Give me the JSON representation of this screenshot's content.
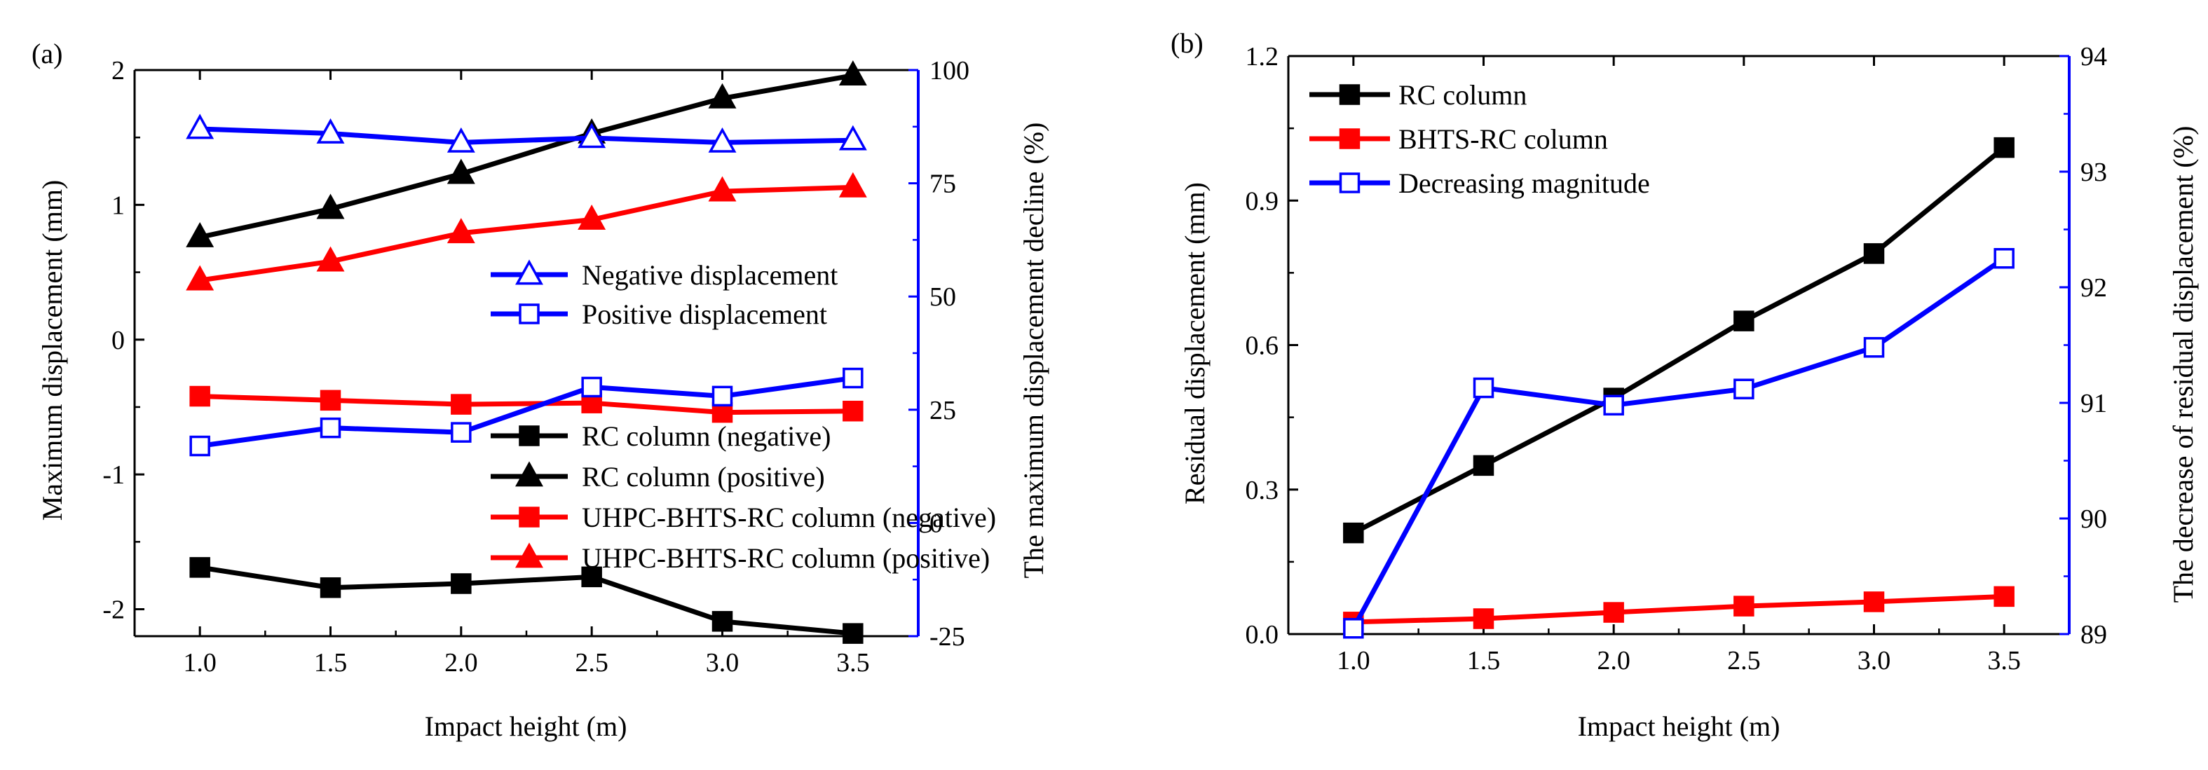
{
  "chart_data": [
    {
      "panel_label": "(a)",
      "type": "line",
      "xlabel": "Impact height (m)",
      "ylabel": "Maximum displacement (mm)",
      "ylabel_right": "The maximum displacement decline (%)",
      "x": [
        1.0,
        1.5,
        2.0,
        2.5,
        3.0,
        3.5
      ],
      "x_tick_labels": [
        "1.0",
        "1.5",
        "2.0",
        "2.5",
        "3.0",
        "3.5"
      ],
      "xlim": [
        0.75,
        3.75
      ],
      "ylim": [
        -2.2,
        2.0
      ],
      "yticks": [
        "2",
        "1",
        "0",
        "-1",
        "-2"
      ],
      "ylim_right": [
        -25,
        100
      ],
      "yticks_right": [
        "100",
        "75",
        "50",
        "25",
        "0",
        "-25"
      ],
      "grid": false,
      "series": [
        {
          "name": "RC column (negative)",
          "axis": "left",
          "color": "#000000",
          "marker": "square-filled",
          "values": [
            -1.69,
            -1.84,
            -1.81,
            -1.76,
            -2.09,
            -2.18
          ]
        },
        {
          "name": "RC column (positive)",
          "axis": "left",
          "color": "#000000",
          "marker": "triangle-filled",
          "values": [
            0.76,
            0.97,
            1.23,
            1.53,
            1.79,
            1.96
          ]
        },
        {
          "name": "UHPC-BHTS-RC column (negative)",
          "axis": "left",
          "color": "#ff0000",
          "marker": "square-filled",
          "values": [
            -0.42,
            -0.45,
            -0.48,
            -0.47,
            -0.54,
            -0.53
          ]
        },
        {
          "name": "UHPC-BHTS-RC column (positive)",
          "axis": "left",
          "color": "#ff0000",
          "marker": "triangle-filled",
          "values": [
            0.44,
            0.58,
            0.79,
            0.89,
            1.1,
            1.13
          ]
        },
        {
          "name": "Negative displacement",
          "axis": "right",
          "color": "#0000ff",
          "marker": "triangle-open",
          "values": [
            87,
            86,
            84,
            85,
            84,
            84.5
          ]
        },
        {
          "name": "Positive displacement",
          "axis": "right",
          "color": "#0000ff",
          "marker": "square-open",
          "values": [
            17,
            21,
            20,
            30,
            28,
            32
          ]
        }
      ],
      "legends": [
        {
          "placement": "center-right",
          "items": [
            "Negative displacement",
            "Positive displacement"
          ]
        },
        {
          "placement": "bottom-right",
          "items": [
            "RC column (negative)",
            "RC column (positive)",
            "UHPC-BHTS-RC column (negative)",
            "UHPC-BHTS-RC column (positive)"
          ]
        }
      ]
    },
    {
      "panel_label": "(b)",
      "type": "line",
      "xlabel": "Impact height (m)",
      "ylabel": "Residual displacement (mm)",
      "ylabel_right": "The decrease of residual displacement (%)",
      "x": [
        1.0,
        1.5,
        2.0,
        2.5,
        3.0,
        3.5
      ],
      "x_tick_labels": [
        "1.0",
        "1.5",
        "2.0",
        "2.5",
        "3.0",
        "3.5"
      ],
      "xlim": [
        0.75,
        3.75
      ],
      "ylim": [
        0,
        1.2
      ],
      "yticks": [
        "1.2",
        "0.9",
        "0.6",
        "0.3",
        "0.0"
      ],
      "ylim_right": [
        89,
        94
      ],
      "yticks_right": [
        "94",
        "93",
        "92",
        "91",
        "90",
        "89"
      ],
      "grid": false,
      "series": [
        {
          "name": "RC column",
          "axis": "left",
          "color": "#000000",
          "marker": "square-filled",
          "values": [
            0.21,
            0.35,
            0.49,
            0.65,
            0.79,
            1.01
          ]
        },
        {
          "name": "BHTS-RC column",
          "axis": "left",
          "color": "#ff0000",
          "marker": "square-filled",
          "values": [
            0.025,
            0.032,
            0.045,
            0.058,
            0.067,
            0.078
          ]
        },
        {
          "name": "Decreasing magnitude",
          "axis": "right",
          "color": "#0000ff",
          "marker": "square-open",
          "values": [
            89.05,
            91.13,
            90.98,
            91.12,
            91.48,
            92.25
          ]
        }
      ],
      "legends": [
        {
          "placement": "top-left",
          "items": [
            "RC column",
            "BHTS-RC column",
            "Decreasing magnitude"
          ]
        }
      ]
    }
  ]
}
